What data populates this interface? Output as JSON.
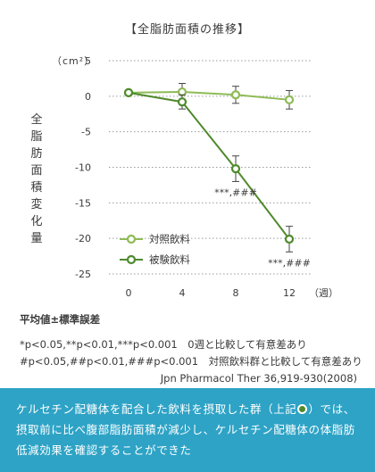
{
  "chart_data": {
    "type": "line",
    "title": "【全脂肪面積の推移】",
    "unit": "（cm²）",
    "ylabel": "全脂肪面積変化量",
    "xlabel": "（週）",
    "x": [
      0,
      4,
      8,
      12
    ],
    "ylim": [
      -25,
      5
    ],
    "yticks": [
      5,
      0,
      -5,
      -10,
      -15,
      -20,
      -25
    ],
    "ytick_labels": [
      "5",
      "0",
      "-5",
      "-10",
      "-15",
      "-20",
      "-25"
    ],
    "xtick_labels": [
      "0",
      "4",
      "8",
      "12"
    ],
    "grid": "horizontal dotted",
    "legend_position": "bottom-left",
    "series": [
      {
        "name": "対照飲料",
        "color": "#8dbb55",
        "values": [
          0.5,
          0.6,
          0.2,
          -0.5
        ],
        "error": [
          0.0,
          1.2,
          1.2,
          1.3
        ]
      },
      {
        "name": "被験飲料",
        "color": "#4f8a2d",
        "values": [
          0.5,
          -0.8,
          -10.2,
          -20.1
        ],
        "error": [
          0.0,
          1.0,
          1.8,
          1.8
        ],
        "annotations": [
          {
            "x": 8,
            "text": "***,###"
          },
          {
            "x": 12,
            "text": "***,###"
          }
        ]
      }
    ]
  },
  "notes": {
    "header": "平均値±標準誤差",
    "line1": "*p<0.05,**p<0.01,***p<0.001　0週と比較して有意差あり",
    "line2": "#p<0.05,##p<0.01,###p<0.001　対照飲料群と比較して有意差あり",
    "reference": "Jpn Pharmacol Ther 36,919-930(2008)"
  },
  "footer": {
    "text_before": "ケルセチン配糖体を配合した飲料を摂取した群（上記",
    "text_after": "）では、摂取前に比べ腹部脂肪面積が減少し、ケルセチン配糖体の体脂肪低減効果を確認することができた"
  },
  "colors": {
    "footer_bg": "#2ea3c6",
    "control": "#8dbb55",
    "test": "#4f8a2d"
  }
}
